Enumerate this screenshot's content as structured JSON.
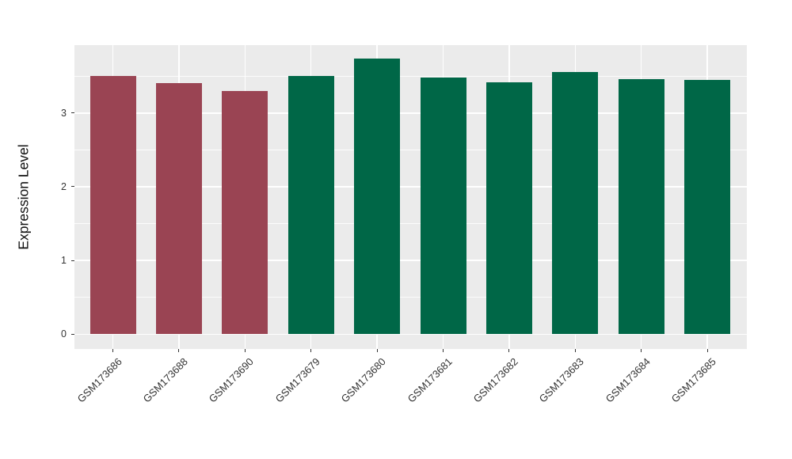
{
  "chart_data": {
    "type": "bar",
    "title": "",
    "xlabel": "",
    "ylabel": "Expression Level",
    "categories": [
      "GSM173686",
      "GSM173688",
      "GSM173690",
      "GSM173679",
      "GSM173680",
      "GSM173681",
      "GSM173682",
      "GSM173683",
      "GSM173684",
      "GSM173685"
    ],
    "values": [
      3.5,
      3.41,
      3.3,
      3.5,
      3.74,
      3.48,
      3.42,
      3.55,
      3.46,
      3.45
    ],
    "bar_colors": [
      "#9A4453",
      "#9A4453",
      "#9A4453",
      "#006747",
      "#006747",
      "#006747",
      "#006747",
      "#006747",
      "#006747",
      "#006747"
    ],
    "group_colors": {
      "maroon_group": "#9A4453",
      "green_group": "#006747"
    },
    "y_ticks": [
      "0",
      "1",
      "2",
      "3"
    ],
    "y_tick_values": [
      0,
      1,
      2,
      3
    ],
    "y_minor_tick_values": [
      0.5,
      1.5,
      2.5,
      3.5
    ],
    "ylim": [
      -0.2,
      3.92
    ],
    "x_tick_rotation_deg": 45,
    "grid": "white major and minor horizontal lines, white vertical lines at category centers",
    "legend": "none",
    "panel_bg": "#EBEBEB",
    "grid_color": "#FFFFFF",
    "axis_text_color": "#333333",
    "figure_bg": "#FFFFFF"
  }
}
